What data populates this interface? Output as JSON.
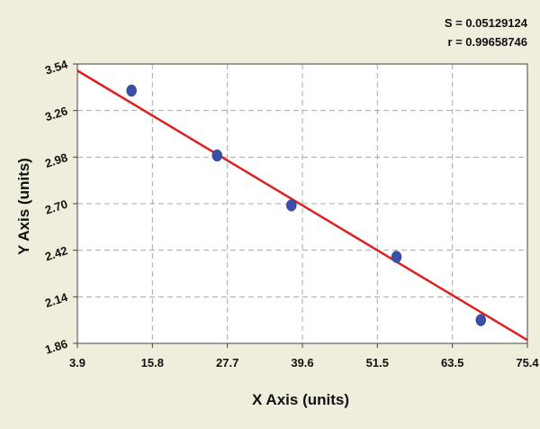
{
  "chart_data": {
    "type": "scatter",
    "xlabel": "X Axis (units)",
    "ylabel": "Y Axis (units)",
    "xlim": [
      3.9,
      75.4
    ],
    "ylim": [
      1.86,
      3.54
    ],
    "x_ticks": [
      "3.9",
      "15.8",
      "27.7",
      "39.6",
      "51.5",
      "63.5",
      "75.4"
    ],
    "y_ticks": [
      "3.54",
      "3.26",
      "2.98",
      "2.70",
      "2.42",
      "2.14",
      "1.86"
    ],
    "grid": true,
    "series": [
      {
        "points": [
          {
            "x": 12.5,
            "y": 3.38
          },
          {
            "x": 26.1,
            "y": 2.99
          },
          {
            "x": 37.9,
            "y": 2.69
          },
          {
            "x": 54.6,
            "y": 2.38
          },
          {
            "x": 68.0,
            "y": 2.0
          }
        ]
      }
    ],
    "fit_line": {
      "x": [
        3.9,
        75.4
      ],
      "y": [
        3.5,
        1.88
      ]
    },
    "statistics": {
      "s_text": "S = 0.05129124",
      "r_text": "r = 0.99658746"
    },
    "colors": {
      "background": "#efeedd",
      "plot_background": "#ffffff",
      "grid": "#a8a8a8",
      "point": "#3a4fa8",
      "fit_line": "#e02020"
    }
  }
}
